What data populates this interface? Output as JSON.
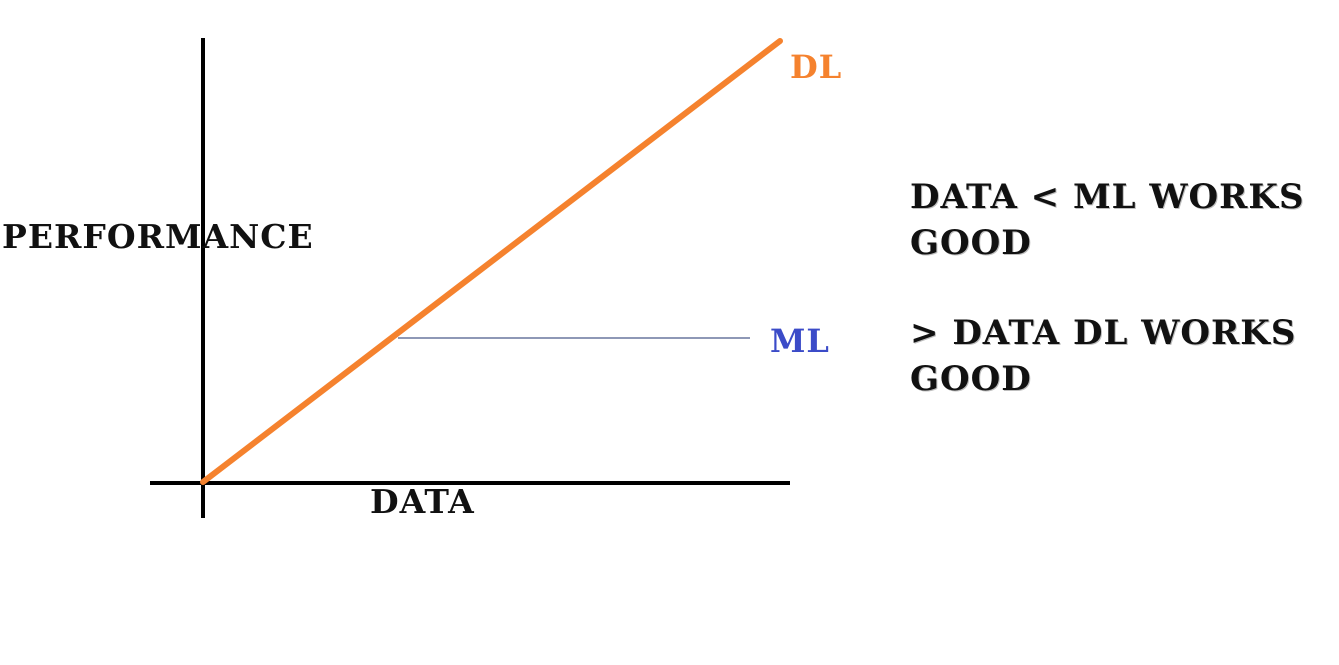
{
  "axes": {
    "y_label": "PERFORMANCE",
    "x_label": "DATA",
    "color": "#000000"
  },
  "series": [
    {
      "label": "DL",
      "color": "#f5822e",
      "shape": "rising diagonal line from origin"
    },
    {
      "label": "ML",
      "color": "#3b4bc8",
      "line_color": "#4a5a8a",
      "shape": "horizontal plateau starting where it meets DL"
    }
  ],
  "notes": [
    {
      "text": "DATA < ML WORKS GOOD"
    },
    {
      "text": "> DATA DL WORKS GOOD"
    }
  ]
}
